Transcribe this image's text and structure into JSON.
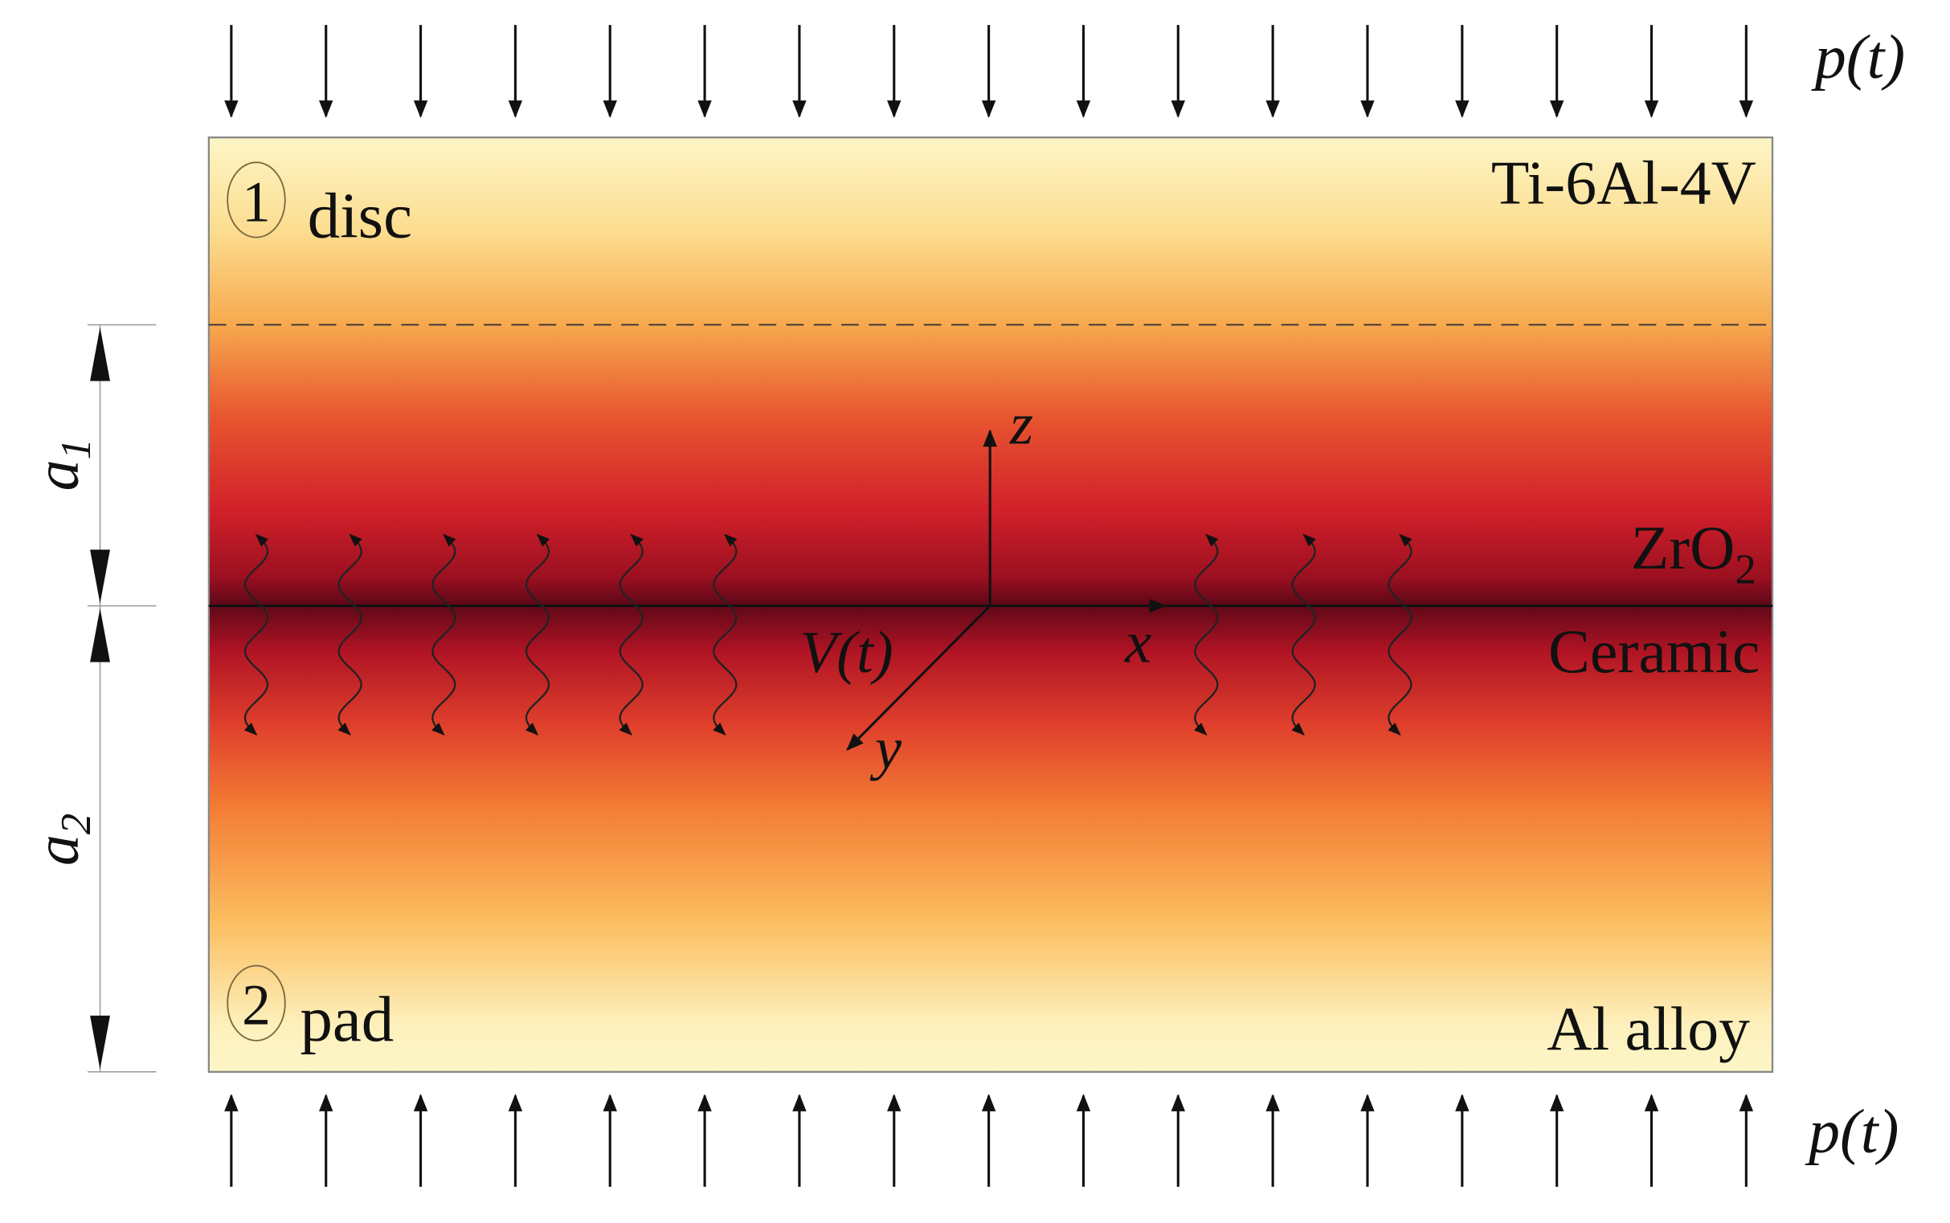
{
  "loads": {
    "top": "p(t)",
    "bottom": "p(t)"
  },
  "layers": {
    "disc": {
      "number": "1",
      "label": "disc",
      "material": "Ti-6Al-4V"
    },
    "interface": {
      "material": "ZrO",
      "subscript": "2",
      "coating": "Ceramic"
    },
    "pad": {
      "number": "2",
      "label": "pad",
      "material": "Al alloy"
    }
  },
  "dimensions": {
    "a1": {
      "symbol": "a",
      "subscript": "1"
    },
    "a2": {
      "symbol": "a",
      "subscript": "2"
    }
  },
  "axes": {
    "x": "x",
    "y": "y",
    "z": "z",
    "velocity": "V(t)"
  }
}
